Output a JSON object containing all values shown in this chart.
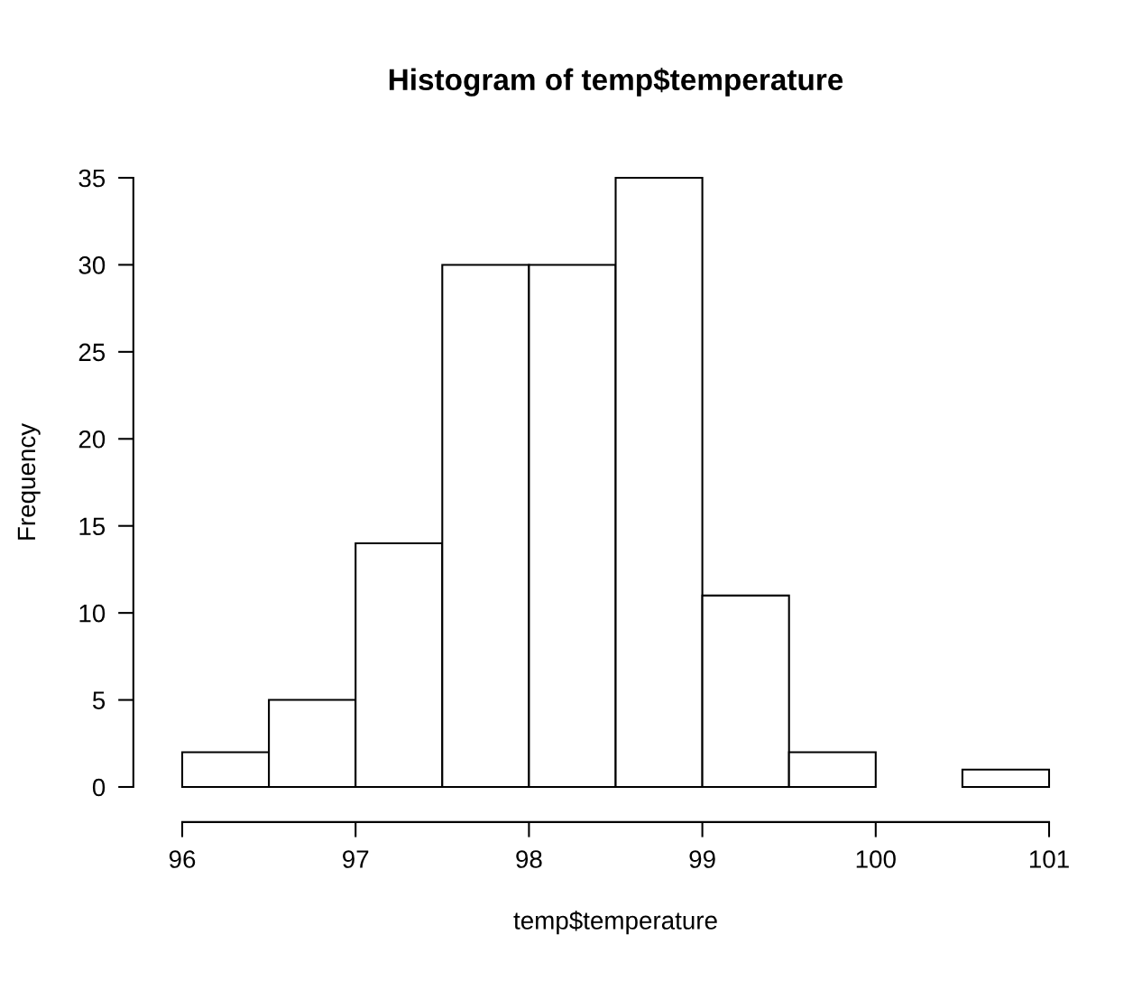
{
  "chart_data": {
    "type": "histogram",
    "title": "Histogram of temp$temperature",
    "xlabel": "temp$temperature",
    "ylabel": "Frequency",
    "bins": [
      96,
      96.5,
      97,
      97.5,
      98,
      98.5,
      99,
      99.5,
      100,
      100.5,
      101
    ],
    "values": [
      2,
      5,
      14,
      30,
      30,
      35,
      11,
      2,
      0,
      1
    ],
    "color": "#ffffff",
    "xlim": [
      96,
      101
    ],
    "xticks": [
      96,
      97,
      98,
      99,
      100,
      101
    ],
    "ylim": [
      0,
      35
    ],
    "yticks": [
      0,
      5,
      10,
      15,
      20,
      25,
      30,
      35
    ]
  }
}
